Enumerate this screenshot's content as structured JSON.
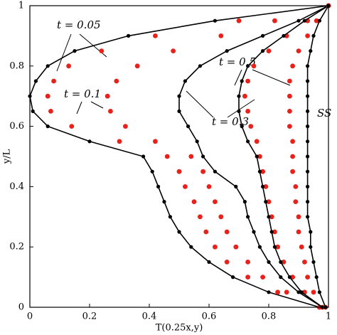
{
  "chart_data": {
    "type": "line",
    "x_label": "T(0.25x,y)",
    "y_label": "y/L",
    "xlim": [
      0,
      1
    ],
    "ylim": [
      0,
      1
    ],
    "xticks": [
      0,
      0.2,
      0.4,
      0.6,
      0.8,
      1
    ],
    "yticks": [
      0,
      0.2,
      0.4,
      0.6,
      0.8,
      1
    ],
    "y": [
      0,
      0.05,
      0.1,
      0.15,
      0.2,
      0.25,
      0.3,
      0.35,
      0.4,
      0.45,
      0.5,
      0.55,
      0.6,
      0.65,
      0.7,
      0.75,
      0.8,
      0.85,
      0.9,
      0.95,
      1
    ],
    "series": [
      {
        "color": "#000000",
        "line": true,
        "x": [
          0.97,
          0.8,
          0.68,
          0.6,
          0.54,
          0.5,
          0.47,
          0.45,
          0.43,
          0.41,
          0.38,
          0.2,
          0.06,
          0.01,
          0.0,
          0.02,
          0.06,
          0.15,
          0.33,
          0.62,
          1
        ]
      },
      {
        "color": "#e8221b",
        "line": false,
        "x": [
          0.97,
          0.83,
          0.73,
          0.66,
          0.62,
          0.59,
          0.57,
          0.55,
          0.52,
          0.5,
          0.46,
          0.3,
          0.14,
          0.07,
          0.06,
          0.08,
          0.13,
          0.24,
          0.42,
          0.7,
          1
        ]
      },
      {
        "color": "#e8221b",
        "line": false,
        "x": [
          0.97,
          0.86,
          0.78,
          0.73,
          0.69,
          0.66,
          0.64,
          0.62,
          0.6,
          0.58,
          0.54,
          0.42,
          0.32,
          0.27,
          0.26,
          0.29,
          0.36,
          0.48,
          0.64,
          0.82,
          1
        ]
      },
      {
        "color": "#000000",
        "line": true,
        "x": [
          0.98,
          0.9,
          0.84,
          0.8,
          0.77,
          0.75,
          0.73,
          0.72,
          0.69,
          0.62,
          0.58,
          0.56,
          0.53,
          0.5,
          0.5,
          0.52,
          0.57,
          0.66,
          0.78,
          0.9,
          1
        ]
      },
      {
        "color": "#e8221b",
        "line": false,
        "x": [
          0.98,
          0.92,
          0.88,
          0.85,
          0.83,
          0.82,
          0.81,
          0.8,
          0.79,
          0.78,
          0.77,
          0.76,
          0.74,
          0.73,
          0.72,
          0.73,
          0.75,
          0.8,
          0.86,
          0.93,
          1
        ]
      },
      {
        "color": "#000000",
        "line": true,
        "x": [
          0.98,
          0.91,
          0.87,
          0.84,
          0.82,
          0.81,
          0.8,
          0.79,
          0.78,
          0.77,
          0.76,
          0.73,
          0.71,
          0.7,
          0.7,
          0.71,
          0.73,
          0.78,
          0.85,
          0.92,
          1
        ]
      },
      {
        "color": "#e8221b",
        "line": false,
        "x": [
          0.99,
          0.95,
          0.93,
          0.92,
          0.91,
          0.9,
          0.9,
          0.89,
          0.89,
          0.88,
          0.88,
          0.88,
          0.87,
          0.87,
          0.87,
          0.87,
          0.88,
          0.9,
          0.93,
          0.96,
          1
        ]
      },
      {
        "color": "#000000",
        "line": true,
        "x": [
          0.99,
          0.97,
          0.96,
          0.95,
          0.94,
          0.94,
          0.93,
          0.93,
          0.93,
          0.93,
          0.93,
          0.93,
          0.93,
          0.93,
          0.93,
          0.93,
          0.93,
          0.94,
          0.95,
          0.97,
          1
        ]
      }
    ],
    "annotations": [
      "t = 0.05",
      "t = 0.1",
      "t = 0.5",
      "t = 0.3",
      "SS"
    ]
  }
}
